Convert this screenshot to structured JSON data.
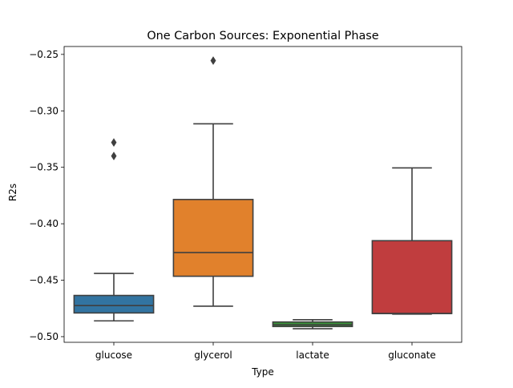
{
  "chart_data": {
    "type": "box",
    "title": "One Carbon Sources: Exponential Phase",
    "xlabel": "Type",
    "ylabel": "R2s",
    "ylim": [
      -0.505,
      -0.243
    ],
    "yticks": [
      -0.25,
      -0.3,
      -0.35,
      -0.4,
      -0.45,
      -0.5
    ],
    "ytick_labels": [
      "−0.25",
      "−0.30",
      "−0.35",
      "−0.40",
      "−0.45",
      "−0.50"
    ],
    "categories": [
      "glucose",
      "glycerol",
      "lactate",
      "gluconate"
    ],
    "grid": false,
    "boxes": [
      {
        "category": "glucose",
        "color": "#3274a1",
        "whisker_low": -0.486,
        "q1": -0.479,
        "median": -0.4725,
        "q3": -0.4635,
        "whisker_high": -0.444,
        "outliers": [
          -0.328,
          -0.34
        ]
      },
      {
        "category": "glycerol",
        "color": "#e1812c",
        "whisker_low": -0.473,
        "q1": -0.4465,
        "median": -0.4255,
        "q3": -0.3785,
        "whisker_high": -0.3115,
        "outliers": [
          -0.2555
        ]
      },
      {
        "category": "lactate",
        "color": "#3a923a",
        "whisker_low": -0.493,
        "q1": -0.491,
        "median": -0.4895,
        "q3": -0.487,
        "whisker_high": -0.485,
        "outliers": []
      },
      {
        "category": "gluconate",
        "color": "#c03d3e",
        "whisker_low": -0.48,
        "q1": -0.4795,
        "median": -0.4795,
        "q3": -0.415,
        "whisker_high": -0.3505,
        "outliers": []
      }
    ]
  }
}
